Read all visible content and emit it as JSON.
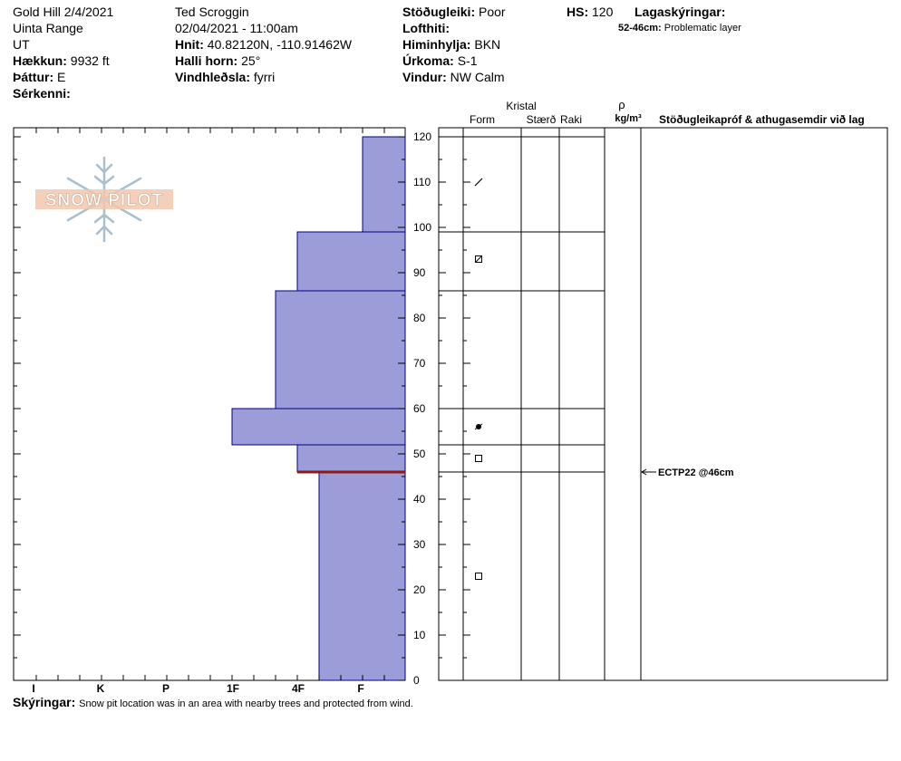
{
  "header": {
    "col1": {
      "location": "Gold Hill 2/4/2021",
      "range": "Uinta Range",
      "state": "UT",
      "elevation_label": "Hækkun:",
      "elevation_value": "9932 ft",
      "aspect_label": "Þáttur:",
      "aspect_value": "E",
      "features_label": "Sérkenni:"
    },
    "col2": {
      "observer": "Ted Scroggin",
      "datetime": "02/04/2021 - 11:00am",
      "coords_label": "Hnit:",
      "coords_value": "40.82120N, -110.91462W",
      "slope_label": "Halli horn:",
      "slope_value": "25°",
      "wind_loading_label": "Vindhleðsla:",
      "wind_loading_value": "fyrri"
    },
    "col3": {
      "stability_label": "Stöðugleiki:",
      "stability_value": "Poor",
      "air_temp_label": "Lofthiti:",
      "sky_label": "Himinhylja:",
      "sky_value": "BKN",
      "precip_label": "Úrkoma:",
      "precip_value": "S-1",
      "wind_label": "Vindur:",
      "wind_value": "NW Calm"
    },
    "col4": {
      "hs_label": "HS:",
      "hs_value": "120",
      "layer_notes_label": "Lagaskýringar:",
      "layer_note_range": "52-46cm:",
      "layer_note_text": "Problematic layer"
    }
  },
  "table_headers": {
    "crystal": "Kristal",
    "form": "Form",
    "size": "Stærð",
    "moisture": "Raki",
    "rho": "ρ",
    "density_unit": "kg/m³",
    "stability_tests": "Stöðugleikapróf & athugasemdir við lag"
  },
  "footer": {
    "label": "Skýringar:",
    "text": "Snow pit location was in an area with nearby trees and protected from wind."
  },
  "logo": {
    "text": "SNOW PILOT"
  },
  "chart_data": {
    "type": "bar",
    "description_axis": "hardness profile vs depth",
    "hardness_categories": [
      "I",
      "K",
      "P",
      "1F",
      "4F",
      "F"
    ],
    "y_ticks": [
      0,
      10,
      20,
      30,
      40,
      50,
      60,
      70,
      80,
      90,
      100,
      110,
      120
    ],
    "ylim": [
      0,
      120
    ],
    "fill_color": "#9c9cd8",
    "outline_color": "#000080",
    "weak_layer_color": "#8b1a1a",
    "layers": [
      {
        "top": 120,
        "bottom": 99,
        "hardness": "F"
      },
      {
        "top": 99,
        "bottom": 86,
        "hardness": "4F"
      },
      {
        "top": 86,
        "bottom": 60,
        "hardness": "4F+"
      },
      {
        "top": 60,
        "bottom": 52,
        "hardness": "1F"
      },
      {
        "top": 52,
        "bottom": 46,
        "hardness": "4F"
      },
      {
        "top": 46,
        "bottom": 0,
        "hardness": "4F-"
      }
    ],
    "weak_layer_depth": 46,
    "layer_boundaries": [
      120,
      99,
      86,
      60,
      52,
      46
    ],
    "grain_forms": [
      {
        "depth": 110,
        "symbol": "precipitation-particle"
      },
      {
        "depth": 93,
        "symbol": "rounded-faceted"
      },
      {
        "depth": 56,
        "symbol": "melt-freeze"
      },
      {
        "depth": 49,
        "symbol": "faceted"
      },
      {
        "depth": 23,
        "symbol": "faceted"
      }
    ],
    "tests": [
      {
        "depth": 46,
        "label": "ECTP22 @46cm"
      }
    ]
  }
}
